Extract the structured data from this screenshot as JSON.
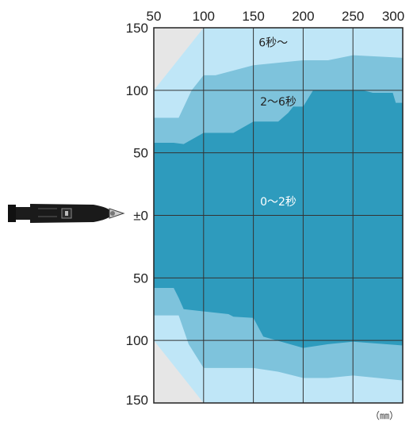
{
  "chart_data": {
    "type": "area",
    "title": "",
    "xlabel": "",
    "ylabel": "",
    "unit_label": "（㎜）",
    "x_ticks": [
      "50",
      "100",
      "150",
      "200",
      "250",
      "300"
    ],
    "y_ticks": [
      "150",
      "100",
      "50",
      "±0",
      "50",
      "150"
    ],
    "y_tick_values": [
      150,
      100,
      50,
      0,
      -50,
      -150
    ],
    "y_tick_extra_100": "100",
    "xlim": [
      50,
      300
    ],
    "ylim": [
      -150,
      150
    ],
    "grid": true,
    "regions": [
      {
        "name": "6秒〜",
        "label_pos": {
          "x": 170,
          "y": 135
        },
        "color": "#bfe6f7",
        "text_color": "#222222",
        "upper": [
          [
            50,
            100
          ],
          [
            100,
            150
          ],
          [
            300,
            150
          ]
        ],
        "lower": [
          [
            50,
            -100
          ],
          [
            100,
            -150
          ],
          [
            300,
            -150
          ]
        ]
      },
      {
        "name": "2〜6秒",
        "label_pos": {
          "x": 175,
          "y": 88
        },
        "color": "#7ec3dc",
        "text_color": "#222222",
        "upper": [
          [
            50,
            78
          ],
          [
            75,
            78
          ],
          [
            88,
            100
          ],
          [
            100,
            112
          ],
          [
            112,
            112
          ],
          [
            150,
            120
          ],
          [
            200,
            124
          ],
          [
            225,
            124
          ],
          [
            250,
            128
          ],
          [
            300,
            126
          ]
        ],
        "lower": [
          [
            50,
            -80
          ],
          [
            75,
            -80
          ],
          [
            85,
            -103
          ],
          [
            100,
            -122
          ],
          [
            150,
            -122
          ],
          [
            175,
            -125
          ],
          [
            200,
            -130
          ],
          [
            225,
            -130
          ],
          [
            250,
            -128
          ],
          [
            300,
            -132
          ]
        ]
      },
      {
        "name": "0〜2秒",
        "label_pos": {
          "x": 175,
          "y": 8
        },
        "color": "#2e9bbd",
        "text_color": "#ffffff",
        "upper": [
          [
            50,
            58
          ],
          [
            70,
            58
          ],
          [
            80,
            57
          ],
          [
            100,
            66
          ],
          [
            130,
            66
          ],
          [
            150,
            75
          ],
          [
            175,
            75
          ],
          [
            185,
            82
          ],
          [
            190,
            87
          ],
          [
            200,
            87
          ],
          [
            210,
            100
          ],
          [
            260,
            100
          ],
          [
            270,
            98
          ],
          [
            290,
            98
          ],
          [
            293,
            90
          ],
          [
            300,
            90
          ]
        ],
        "lower": [
          [
            50,
            -58
          ],
          [
            70,
            -58
          ],
          [
            75,
            -66
          ],
          [
            80,
            -75
          ],
          [
            125,
            -79
          ],
          [
            130,
            -81
          ],
          [
            150,
            -82
          ],
          [
            160,
            -97
          ],
          [
            200,
            -106
          ],
          [
            225,
            -103
          ],
          [
            250,
            -101
          ],
          [
            300,
            -104
          ]
        ]
      }
    ]
  }
}
